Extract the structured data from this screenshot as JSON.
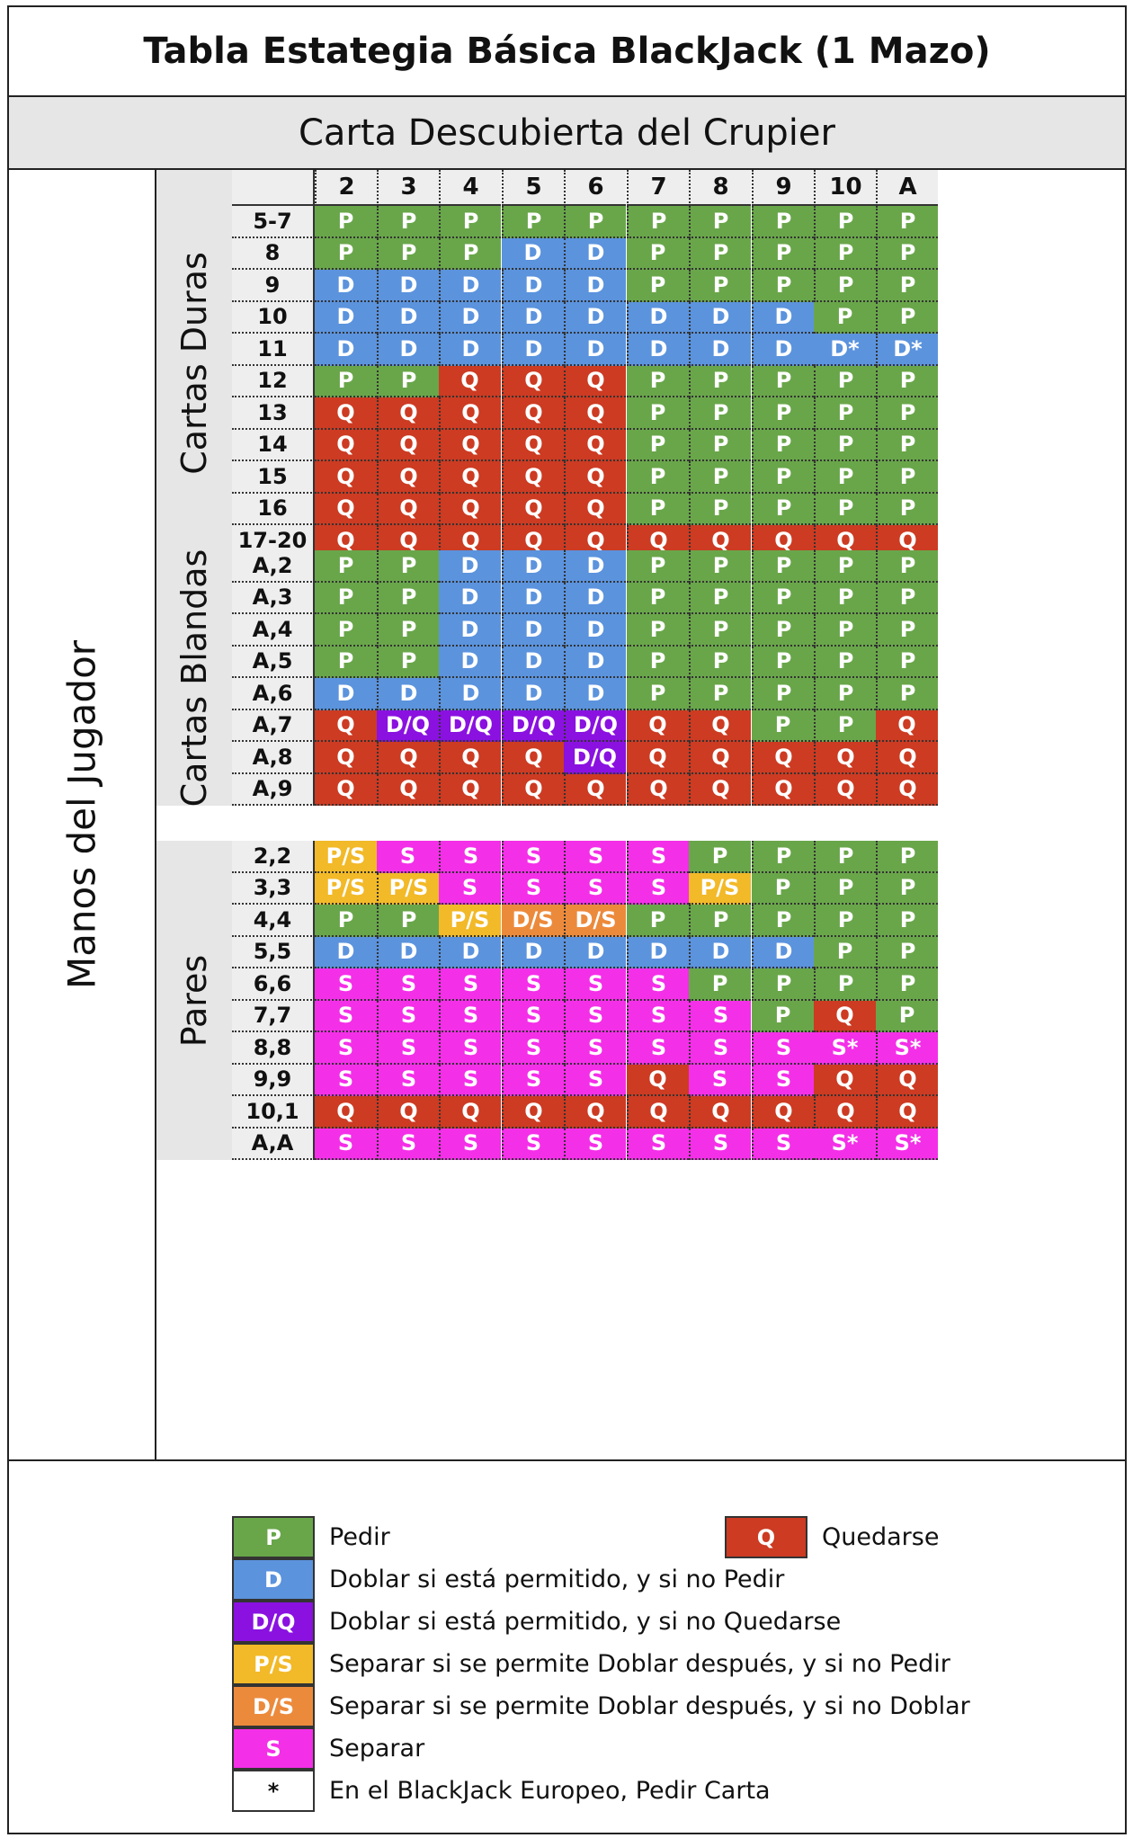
{
  "title": "Tabla Estategia Básica BlackJack (1 Mazo)",
  "dealer_header": "Carta Descubierta del Crupier",
  "player_label": "Manos del Jugador",
  "dealer_cards": [
    "2",
    "3",
    "4",
    "5",
    "6",
    "7",
    "8",
    "9",
    "10",
    "A"
  ],
  "colors": {
    "P": "#69a64a",
    "Q": "#cc3b22",
    "D": "#5b93dd",
    "D*": "#5b93dd",
    "D/Q": "#8a11e0",
    "P/S": "#f2b928",
    "D/S": "#ec8a3c",
    "S": "#f42fe8",
    "S*": "#f42fe8",
    "*": "#ffffff"
  },
  "sections": [
    {
      "name": "Cartas Duras",
      "rows": [
        {
          "hand": "5-7",
          "actions": [
            "P",
            "P",
            "P",
            "P",
            "P",
            "P",
            "P",
            "P",
            "P",
            "P"
          ]
        },
        {
          "hand": "8",
          "actions": [
            "P",
            "P",
            "P",
            "D",
            "D",
            "P",
            "P",
            "P",
            "P",
            "P"
          ]
        },
        {
          "hand": "9",
          "actions": [
            "D",
            "D",
            "D",
            "D",
            "D",
            "P",
            "P",
            "P",
            "P",
            "P"
          ]
        },
        {
          "hand": "10",
          "actions": [
            "D",
            "D",
            "D",
            "D",
            "D",
            "D",
            "D",
            "D",
            "P",
            "P"
          ]
        },
        {
          "hand": "11",
          "actions": [
            "D",
            "D",
            "D",
            "D",
            "D",
            "D",
            "D",
            "D",
            "D*",
            "D*"
          ]
        },
        {
          "hand": "12",
          "actions": [
            "P",
            "P",
            "Q",
            "Q",
            "Q",
            "P",
            "P",
            "P",
            "P",
            "P"
          ]
        },
        {
          "hand": "13",
          "actions": [
            "Q",
            "Q",
            "Q",
            "Q",
            "Q",
            "P",
            "P",
            "P",
            "P",
            "P"
          ]
        },
        {
          "hand": "14",
          "actions": [
            "Q",
            "Q",
            "Q",
            "Q",
            "Q",
            "P",
            "P",
            "P",
            "P",
            "P"
          ]
        },
        {
          "hand": "15",
          "actions": [
            "Q",
            "Q",
            "Q",
            "Q",
            "Q",
            "P",
            "P",
            "P",
            "P",
            "P"
          ]
        },
        {
          "hand": "16",
          "actions": [
            "Q",
            "Q",
            "Q",
            "Q",
            "Q",
            "P",
            "P",
            "P",
            "P",
            "P"
          ]
        },
        {
          "hand": "17-20",
          "actions": [
            "Q",
            "Q",
            "Q",
            "Q",
            "Q",
            "Q",
            "Q",
            "Q",
            "Q",
            "Q"
          ]
        }
      ]
    },
    {
      "name": "Cartas Blandas",
      "rows": [
        {
          "hand": "A,2",
          "actions": [
            "P",
            "P",
            "D",
            "D",
            "D",
            "P",
            "P",
            "P",
            "P",
            "P"
          ]
        },
        {
          "hand": "A,3",
          "actions": [
            "P",
            "P",
            "D",
            "D",
            "D",
            "P",
            "P",
            "P",
            "P",
            "P"
          ]
        },
        {
          "hand": "A,4",
          "actions": [
            "P",
            "P",
            "D",
            "D",
            "D",
            "P",
            "P",
            "P",
            "P",
            "P"
          ]
        },
        {
          "hand": "A,5",
          "actions": [
            "P",
            "P",
            "D",
            "D",
            "D",
            "P",
            "P",
            "P",
            "P",
            "P"
          ]
        },
        {
          "hand": "A,6",
          "actions": [
            "D",
            "D",
            "D",
            "D",
            "D",
            "P",
            "P",
            "P",
            "P",
            "P"
          ]
        },
        {
          "hand": "A,7",
          "actions": [
            "Q",
            "D/Q",
            "D/Q",
            "D/Q",
            "D/Q",
            "Q",
            "Q",
            "P",
            "P",
            "Q"
          ]
        },
        {
          "hand": "A,8",
          "actions": [
            "Q",
            "Q",
            "Q",
            "Q",
            "D/Q",
            "Q",
            "Q",
            "Q",
            "Q",
            "Q"
          ]
        },
        {
          "hand": "A,9",
          "actions": [
            "Q",
            "Q",
            "Q",
            "Q",
            "Q",
            "Q",
            "Q",
            "Q",
            "Q",
            "Q"
          ]
        }
      ]
    },
    {
      "name": "Pares",
      "rows": [
        {
          "hand": "2,2",
          "actions": [
            "P/S",
            "S",
            "S",
            "S",
            "S",
            "S",
            "P",
            "P",
            "P",
            "P"
          ]
        },
        {
          "hand": "3,3",
          "actions": [
            "P/S",
            "P/S",
            "S",
            "S",
            "S",
            "S",
            "P/S",
            "P",
            "P",
            "P"
          ]
        },
        {
          "hand": "4,4",
          "actions": [
            "P",
            "P",
            "P/S",
            "D/S",
            "D/S",
            "P",
            "P",
            "P",
            "P",
            "P"
          ]
        },
        {
          "hand": "5,5",
          "actions": [
            "D",
            "D",
            "D",
            "D",
            "D",
            "D",
            "D",
            "D",
            "P",
            "P"
          ]
        },
        {
          "hand": "6,6",
          "actions": [
            "S",
            "S",
            "S",
            "S",
            "S",
            "S",
            "P",
            "P",
            "P",
            "P"
          ]
        },
        {
          "hand": "7,7",
          "actions": [
            "S",
            "S",
            "S",
            "S",
            "S",
            "S",
            "S",
            "P",
            "Q",
            "P"
          ]
        },
        {
          "hand": "8,8",
          "actions": [
            "S",
            "S",
            "S",
            "S",
            "S",
            "S",
            "S",
            "S",
            "S*",
            "S*"
          ]
        },
        {
          "hand": "9,9",
          "actions": [
            "S",
            "S",
            "S",
            "S",
            "S",
            "Q",
            "S",
            "S",
            "Q",
            "Q"
          ]
        },
        {
          "hand": "10,1",
          "actions": [
            "Q",
            "Q",
            "Q",
            "Q",
            "Q",
            "Q",
            "Q",
            "Q",
            "Q",
            "Q"
          ]
        },
        {
          "hand": "A,A",
          "actions": [
            "S",
            "S",
            "S",
            "S",
            "S",
            "S",
            "S",
            "S",
            "S*",
            "S*"
          ]
        }
      ]
    }
  ],
  "legend": {
    "q_code": "Q",
    "q_text": "Quedarse",
    "items": [
      {
        "code": "P",
        "text": "Pedir"
      },
      {
        "code": "D",
        "text": "Doblar si está permitido, y si no Pedir"
      },
      {
        "code": "D/Q",
        "text": "Doblar si está permitido, y si no Quedarse"
      },
      {
        "code": "P/S",
        "text": "Separar si se permite Doblar después, y si no Pedir"
      },
      {
        "code": "D/S",
        "text": "Separar si se permite Doblar después, y si no Doblar"
      },
      {
        "code": "S",
        "text": "Separar"
      },
      {
        "code": "*",
        "text": "En el BlackJack Europeo, Pedir Carta"
      }
    ]
  }
}
